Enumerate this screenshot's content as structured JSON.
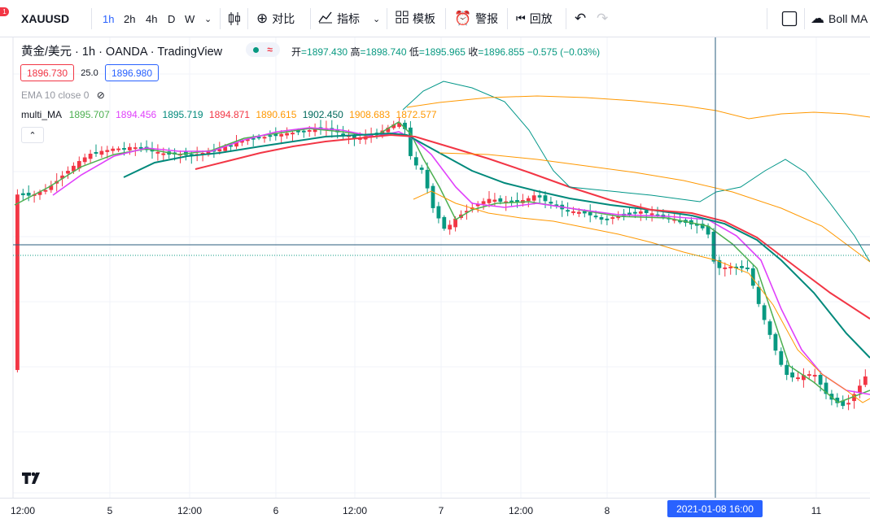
{
  "toolbar": {
    "symbol": "XAUUSD",
    "badge": "1",
    "intervals": [
      "1h",
      "2h",
      "4h",
      "D",
      "W"
    ],
    "active_interval": "1h",
    "compare_label": "对比",
    "indicators_label": "指标",
    "templates_label": "模板",
    "alert_label": "警报",
    "replay_label": "回放",
    "boll_label": "Boll MA"
  },
  "legend": {
    "title": "黄金/美元 · 1h · OANDA · TradingView",
    "status_glyph": "≈",
    "open_key": "开",
    "open": "1897.430",
    "high_key": "高",
    "high": "1898.740",
    "low_key": "低",
    "low": "1895.965",
    "close_key": "收",
    "close": "1896.855",
    "change": "−0.575 (−0.03%)",
    "bid": "1896.730",
    "spread": "25.0",
    "ask": "1896.980",
    "ema": "EMA 10 close 0",
    "multi_ma_label": "multi_MA",
    "multi_ma_values": [
      "1895.707",
      "1894.456",
      "1895.719",
      "1894.871",
      "1890.615",
      "1902.450",
      "1908.683",
      "1872.577"
    ]
  },
  "time_axis": {
    "labels": [
      "12:00",
      "5",
      "12:00",
      "6",
      "12:00",
      "7",
      "12:00",
      "8",
      "11"
    ],
    "crosshair_label": "2021-01-08   16:00"
  },
  "colors": {
    "up": "#f23645",
    "down": "#089981",
    "ma_green": "#4caf50",
    "ma_magenta": "#e040fb",
    "ma_teal": "#00897b",
    "ma_red": "#f23645",
    "ma_orange": "#ff9800",
    "ma_dark": "#00695c",
    "boll_outer": "#009688",
    "boll_orange": "#ff9800",
    "crosshair": "#2962ff"
  },
  "chart_data": {
    "type": "candlestick",
    "note_series": [
      "multi_MA",
      "Boll"
    ],
    "candles_norm": []
  }
}
